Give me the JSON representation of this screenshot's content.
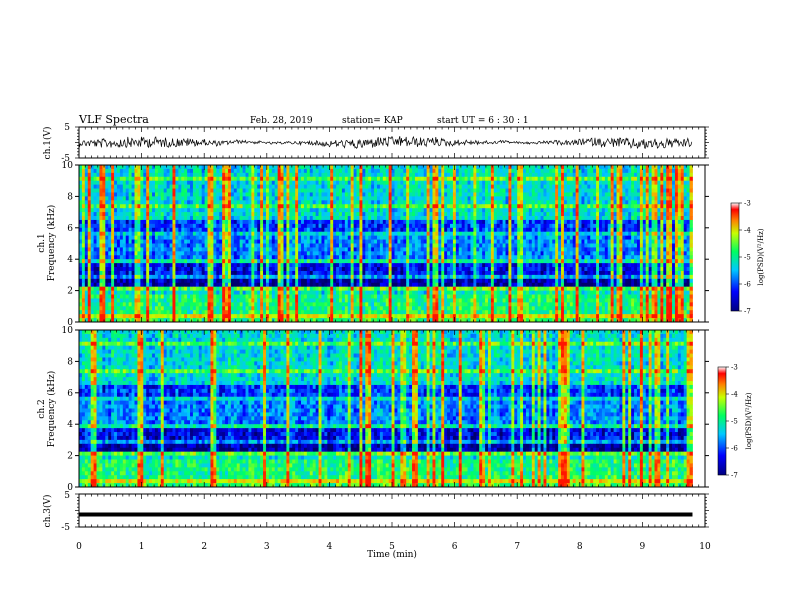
{
  "header": {
    "title": "VLF Spectra",
    "date": "Feb. 28, 2019",
    "station": "station= KAP",
    "start": "start  UT =  6 : 30 : 1"
  },
  "chart_data": [
    {
      "type": "line",
      "name": "ch1-waveform",
      "ylabel": "ch.1(V)",
      "ylim": [
        -5,
        5
      ],
      "ytick_labels": [
        "5",
        "-5"
      ],
      "xlim": [
        0,
        10
      ]
    },
    {
      "type": "heatmap",
      "name": "ch1-spectrogram",
      "ylabel": "ch.1\nFrequency (kHz)",
      "ylim": [
        0,
        10
      ],
      "ytick_labels": [
        "0",
        "2",
        "4",
        "6",
        "8",
        "10"
      ],
      "colorbar": {
        "label": "log(PSD)(V²/Hz)",
        "range": [
          -7,
          -3
        ],
        "tick_labels": [
          "-3",
          "-4",
          "-5",
          "-6",
          "-7"
        ]
      }
    },
    {
      "type": "heatmap",
      "name": "ch2-spectrogram",
      "ylabel": "ch.2\nFrequency (kHz)",
      "ylim": [
        0,
        10
      ],
      "ytick_labels": [
        "0",
        "2",
        "4",
        "6",
        "8",
        "10"
      ],
      "colorbar": {
        "label": "log(PSD)(V²/Hz)",
        "range": [
          -7,
          -3
        ],
        "tick_labels": [
          "-3",
          "-4",
          "-5",
          "-6",
          "-7"
        ]
      }
    },
    {
      "type": "line",
      "name": "ch3-waveform",
      "ylabel": "ch.3(V)",
      "ylim": [
        -5,
        5
      ],
      "ytick_labels": [
        "5",
        "-5"
      ],
      "x": [
        0,
        9.8
      ],
      "y": [
        -1.2,
        -1.2
      ]
    }
  ],
  "x_axis": {
    "label": "Time (min)",
    "range": [
      0,
      10
    ],
    "tick_labels": [
      "0",
      "1",
      "2",
      "3",
      "4",
      "5",
      "6",
      "7",
      "8",
      "9",
      "10"
    ],
    "data_end_min": 9.8
  }
}
